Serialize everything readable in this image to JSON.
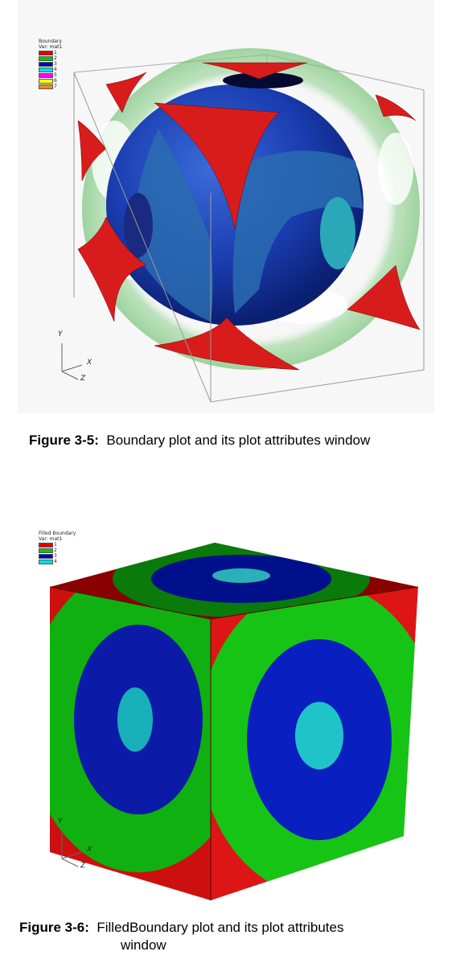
{
  "figure1": {
    "legend": {
      "title": "Boundary",
      "var": "Var: mat1",
      "items": [
        {
          "label": "1",
          "color": "#e00000"
        },
        {
          "label": "2",
          "color": "#00cc00"
        },
        {
          "label": "3",
          "color": "#0000cc"
        },
        {
          "label": "4",
          "color": "#00e0e0"
        },
        {
          "label": "5",
          "color": "#ff00ff"
        },
        {
          "label": "6",
          "color": "#ffff00"
        },
        {
          "label": "7",
          "color": "#ff8800"
        }
      ]
    },
    "axes": {
      "y": "Y",
      "x": "X",
      "z": "Z"
    },
    "caption": {
      "number": "Figure 3-5:",
      "text": "Boundary plot and its plot attributes window"
    }
  },
  "figure2": {
    "legend": {
      "title": "Filled Boundary",
      "var": "Var: mat1",
      "items": [
        {
          "label": "1",
          "color": "#e00000"
        },
        {
          "label": "2",
          "color": "#00cc00"
        },
        {
          "label": "3",
          "color": "#0000cc"
        },
        {
          "label": "4",
          "color": "#00e0e0"
        }
      ]
    },
    "axes": {
      "y": "Y",
      "x": "X",
      "z": "Z"
    },
    "caption": {
      "number": "Figure 3-6:",
      "text": "FilledBoundary plot and its plot attributes",
      "text2": "window"
    }
  }
}
